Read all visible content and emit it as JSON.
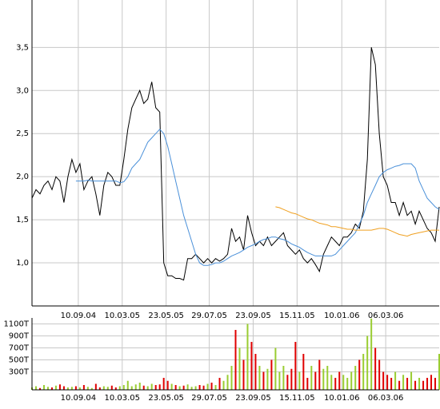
{
  "chart_data": [
    {
      "type": "line",
      "xlim": [
        0,
        102
      ],
      "xticks": [
        {
          "value": 11.6,
          "label": "10.09.04"
        },
        {
          "value": 22.6,
          "label": "10.03.05"
        },
        {
          "value": 33.6,
          "label": "23.05.05"
        },
        {
          "value": 44.4,
          "label": "29.07.05"
        },
        {
          "value": 55.4,
          "label": "23.09.05"
        },
        {
          "value": 66.4,
          "label": "15.11.05"
        },
        {
          "value": 77.6,
          "label": "10.01.06"
        },
        {
          "value": 88.6,
          "label": "06.03.06"
        }
      ],
      "ylim": [
        0.5,
        4.05
      ],
      "yticks": [
        {
          "value": 1.0,
          "label": "1,0"
        },
        {
          "value": 1.5,
          "label": "1,5"
        },
        {
          "value": 2.0,
          "label": "2,0"
        },
        {
          "value": 2.5,
          "label": "2,5"
        },
        {
          "value": 3.0,
          "label": "3,0"
        },
        {
          "value": 3.5,
          "label": "3,5"
        }
      ],
      "grid": true,
      "series": [
        {
          "color": "#000000",
          "values": [
            1.75,
            1.85,
            1.8,
            1.9,
            1.95,
            1.85,
            2.0,
            1.95,
            1.7,
            2.0,
            2.2,
            2.05,
            2.15,
            1.85,
            1.95,
            2.0,
            1.8,
            1.55,
            1.9,
            2.05,
            2.0,
            1.9,
            1.9,
            2.2,
            2.55,
            2.8,
            2.9,
            3.0,
            2.85,
            2.9,
            3.1,
            2.8,
            2.75,
            1.0,
            0.85,
            0.85,
            0.82,
            0.82,
            0.8,
            1.05,
            1.05,
            1.1,
            1.05,
            1.0,
            1.05,
            1.0,
            1.05,
            1.02,
            1.05,
            1.1,
            1.4,
            1.25,
            1.3,
            1.15,
            1.55,
            1.35,
            1.2,
            1.25,
            1.2,
            1.3,
            1.2,
            1.25,
            1.3,
            1.35,
            1.2,
            1.15,
            1.1,
            1.15,
            1.05,
            1.0,
            1.05,
            0.98,
            0.9,
            1.1,
            1.2,
            1.3,
            1.25,
            1.2,
            1.3,
            1.3,
            1.35,
            1.45,
            1.4,
            1.6,
            2.2,
            3.5,
            3.3,
            2.5,
            2.0,
            1.9,
            1.7,
            1.7,
            1.55,
            1.7,
            1.55,
            1.6,
            1.45,
            1.6,
            1.5,
            1.4,
            1.35,
            1.25,
            1.65
          ]
        },
        {
          "color": "#4a90d9",
          "values": [
            null,
            null,
            null,
            null,
            null,
            null,
            null,
            null,
            null,
            null,
            null,
            1.95,
            1.95,
            1.95,
            1.96,
            1.95,
            1.95,
            1.95,
            1.95,
            1.95,
            1.95,
            1.95,
            1.93,
            1.94,
            2.0,
            2.1,
            2.15,
            2.2,
            2.3,
            2.4,
            2.45,
            2.5,
            2.55,
            2.5,
            2.35,
            2.15,
            1.95,
            1.75,
            1.55,
            1.4,
            1.25,
            1.1,
            1.0,
            0.97,
            0.97,
            0.98,
            1.0,
            1.0,
            1.02,
            1.05,
            1.08,
            1.1,
            1.12,
            1.15,
            1.18,
            1.2,
            1.22,
            1.25,
            1.27,
            1.28,
            1.3,
            1.3,
            1.28,
            1.27,
            1.25,
            1.22,
            1.2,
            1.18,
            1.15,
            1.12,
            1.1,
            1.08,
            1.08,
            1.08,
            1.08,
            1.08,
            1.1,
            1.15,
            1.2,
            1.25,
            1.3,
            1.35,
            1.45,
            1.55,
            1.7,
            1.8,
            1.9,
            2.0,
            2.05,
            2.08,
            2.1,
            2.12,
            2.13,
            2.15,
            2.15,
            2.15,
            2.1,
            1.95,
            1.85,
            1.75,
            1.7,
            1.65,
            1.62
          ]
        },
        {
          "color": "#f0a020",
          "values": [
            null,
            null,
            null,
            null,
            null,
            null,
            null,
            null,
            null,
            null,
            null,
            null,
            null,
            null,
            null,
            null,
            null,
            null,
            null,
            null,
            null,
            null,
            null,
            null,
            null,
            null,
            null,
            null,
            null,
            null,
            null,
            null,
            null,
            null,
            null,
            null,
            null,
            null,
            null,
            null,
            null,
            null,
            null,
            null,
            null,
            null,
            null,
            null,
            null,
            null,
            null,
            null,
            null,
            null,
            null,
            null,
            null,
            null,
            null,
            null,
            null,
            1.65,
            1.64,
            1.62,
            1.6,
            1.58,
            1.57,
            1.55,
            1.53,
            1.51,
            1.5,
            1.48,
            1.46,
            1.45,
            1.44,
            1.42,
            1.42,
            1.41,
            1.4,
            1.39,
            1.39,
            1.38,
            1.38,
            1.38,
            1.38,
            1.38,
            1.39,
            1.4,
            1.4,
            1.39,
            1.37,
            1.35,
            1.33,
            1.32,
            1.31,
            1.33,
            1.34,
            1.35,
            1.36,
            1.37,
            1.38,
            1.38,
            1.38
          ]
        }
      ]
    },
    {
      "type": "bar",
      "xlim": [
        0,
        102
      ],
      "xticks": [
        {
          "value": 11.6,
          "label": "10.09.04"
        },
        {
          "value": 22.6,
          "label": "10.03.05"
        },
        {
          "value": 33.6,
          "label": "23.05.05"
        },
        {
          "value": 44.4,
          "label": "29.07.05"
        },
        {
          "value": 55.4,
          "label": "23.09.05"
        },
        {
          "value": 66.4,
          "label": "15.11.05"
        },
        {
          "value": 77.6,
          "label": "10.01.06"
        },
        {
          "value": 88.6,
          "label": "06.03.06"
        }
      ],
      "ylim": [
        0,
        1200
      ],
      "yticks": [
        {
          "value": 300,
          "label": "300T"
        },
        {
          "value": 500,
          "label": "500T"
        },
        {
          "value": 700,
          "label": "700T"
        },
        {
          "value": 900,
          "label": "900T"
        },
        {
          "value": 1100,
          "label": "1100T"
        }
      ],
      "grid": true,
      "up_color": "#9acd32",
      "down_color": "#e00000",
      "values": [
        40,
        60,
        30,
        80,
        50,
        40,
        70,
        90,
        60,
        40,
        50,
        60,
        40,
        80,
        50,
        30,
        100,
        40,
        60,
        50,
        70,
        40,
        60,
        80,
        150,
        60,
        90,
        120,
        70,
        60,
        100,
        80,
        90,
        200,
        150,
        100,
        80,
        60,
        70,
        90,
        50,
        60,
        80,
        70,
        100,
        120,
        80,
        200,
        150,
        250,
        400,
        1000,
        700,
        500,
        1100,
        800,
        600,
        400,
        300,
        350,
        500,
        700,
        300,
        400,
        250,
        350,
        800,
        300,
        600,
        200,
        400,
        300,
        500,
        350,
        400,
        250,
        200,
        300,
        250,
        200,
        300,
        400,
        500,
        600,
        900,
        1190,
        700,
        500,
        300,
        250,
        200,
        300,
        150,
        250,
        200,
        300,
        150,
        200,
        150,
        200,
        250,
        200,
        600
      ]
    }
  ]
}
